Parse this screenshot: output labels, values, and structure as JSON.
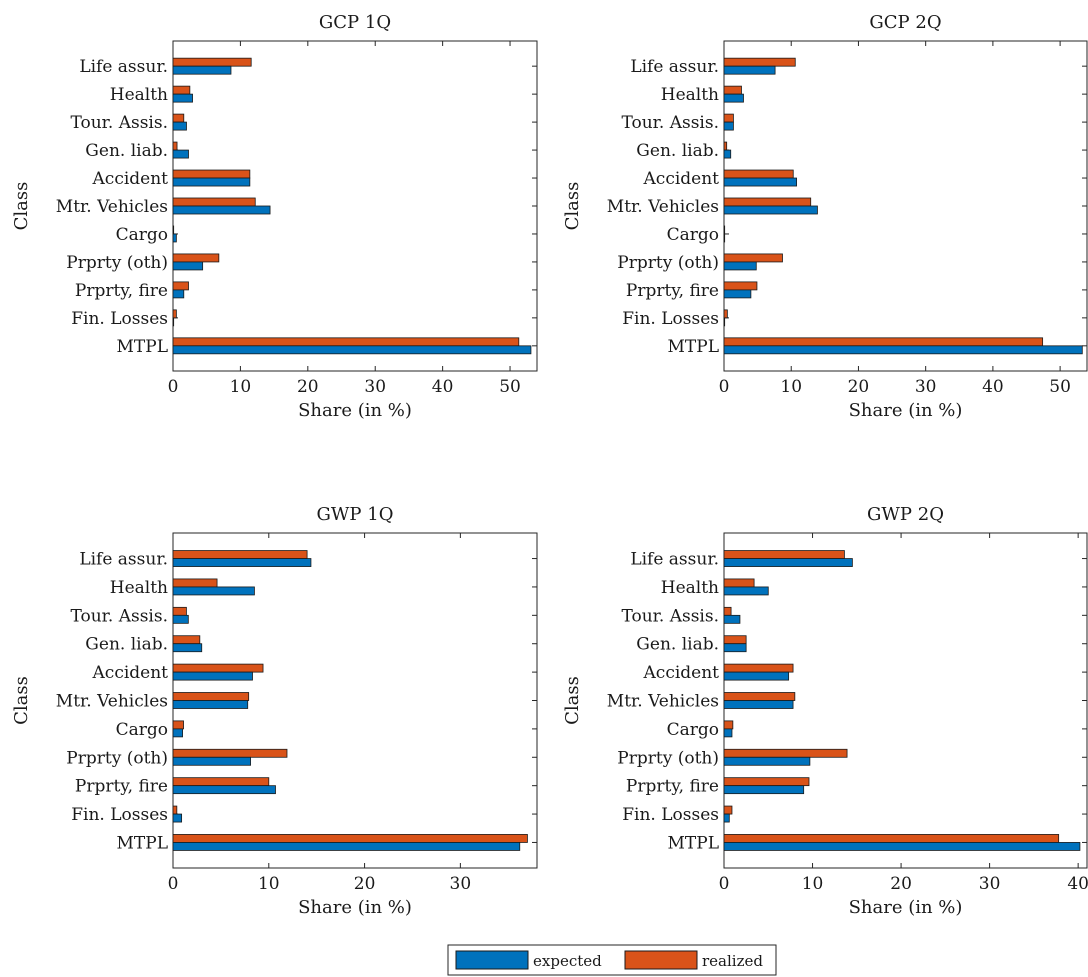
{
  "legend": {
    "expected_label": "expected",
    "realized_label": "realized"
  },
  "colors": {
    "expected": "#0072BD",
    "realized": "#D95319",
    "edge": "#1a1a1a",
    "axis": "#262626"
  },
  "chart_data": [
    {
      "type": "bar",
      "orientation": "horizontal",
      "title": "GCP 1Q",
      "xlabel": "Share (in %)",
      "ylabel": "Class",
      "xlim": [
        0,
        54
      ],
      "xticks": [
        0,
        10,
        20,
        30,
        40,
        50
      ],
      "categories": [
        "Life assur.",
        "Health",
        "Tour. Assis.",
        "Gen. liab.",
        "Accident",
        "Mtr. Vehicles",
        "Cargo",
        "Prprty (oth)",
        "Prprty, fire",
        "Fin. Losses",
        "MTPL"
      ],
      "series": [
        {
          "name": "expected",
          "values": [
            8.6,
            2.9,
            2.0,
            2.3,
            11.4,
            14.4,
            0.5,
            4.4,
            1.6,
            0.1,
            53.1
          ]
        },
        {
          "name": "realized",
          "values": [
            11.6,
            2.5,
            1.6,
            0.6,
            11.4,
            12.2,
            0.1,
            6.8,
            2.3,
            0.5,
            51.3
          ]
        }
      ]
    },
    {
      "type": "bar",
      "orientation": "horizontal",
      "title": "GCP 2Q",
      "xlabel": "Share (in %)",
      "ylabel": "Class",
      "xlim": [
        0,
        54
      ],
      "xticks": [
        0,
        10,
        20,
        30,
        40,
        50
      ],
      "categories": [
        "Life assur.",
        "Health",
        "Tour. Assis.",
        "Gen. liab.",
        "Accident",
        "Mtr. Vehicles",
        "Cargo",
        "Prprty (oth)",
        "Prprty, fire",
        "Fin. Losses",
        "MTPL"
      ],
      "series": [
        {
          "name": "expected",
          "values": [
            7.6,
            2.9,
            1.4,
            1.0,
            10.8,
            13.9,
            0.1,
            4.8,
            4.0,
            0.1,
            53.3
          ]
        },
        {
          "name": "realized",
          "values": [
            10.6,
            2.6,
            1.4,
            0.4,
            10.3,
            12.9,
            0.1,
            8.7,
            4.9,
            0.5,
            47.4
          ]
        }
      ]
    },
    {
      "type": "bar",
      "orientation": "horizontal",
      "title": "GWP 1Q",
      "xlabel": "Share (in %)",
      "ylabel": "Class",
      "xlim": [
        0,
        38
      ],
      "xticks": [
        0,
        10,
        20,
        30
      ],
      "categories": [
        "Life assur.",
        "Health",
        "Tour. Assis.",
        "Gen. liab.",
        "Accident",
        "Mtr. Vehicles",
        "Cargo",
        "Prprty (oth)",
        "Prprty, fire",
        "Fin. Losses",
        "MTPL"
      ],
      "series": [
        {
          "name": "expected",
          "values": [
            14.4,
            8.5,
            1.6,
            3.0,
            8.3,
            7.8,
            1.0,
            8.1,
            10.7,
            0.9,
            36.2
          ]
        },
        {
          "name": "realized",
          "values": [
            14.0,
            4.6,
            1.4,
            2.8,
            9.4,
            7.9,
            1.1,
            11.9,
            10.0,
            0.4,
            37.0
          ]
        }
      ]
    },
    {
      "type": "bar",
      "orientation": "horizontal",
      "title": "GWP 2Q",
      "xlabel": "Share (in %)",
      "ylabel": "Class",
      "xlim": [
        0,
        41
      ],
      "xticks": [
        0,
        10,
        20,
        30,
        40
      ],
      "categories": [
        "Life assur.",
        "Health",
        "Tour. Assis.",
        "Gen. liab.",
        "Accident",
        "Mtr. Vehicles",
        "Cargo",
        "Prprty (oth)",
        "Prprty, fire",
        "Fin. Losses",
        "MTPL"
      ],
      "series": [
        {
          "name": "expected",
          "values": [
            14.5,
            5.0,
            1.8,
            2.5,
            7.3,
            7.8,
            0.9,
            9.7,
            9.0,
            0.6,
            40.2
          ]
        },
        {
          "name": "realized",
          "values": [
            13.6,
            3.4,
            0.8,
            2.5,
            7.8,
            8.0,
            1.0,
            13.9,
            9.6,
            0.9,
            37.8
          ]
        }
      ]
    }
  ]
}
